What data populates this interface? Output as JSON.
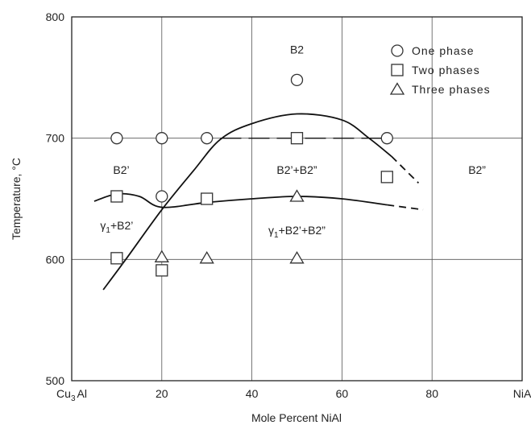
{
  "chart_data": {
    "type": "scatter",
    "xlabel": "Mole Percent NiAl",
    "ylabel": "Temperature, °C",
    "xlim": [
      0,
      100
    ],
    "ylim": [
      500,
      800
    ],
    "x_ticks": [
      {
        "value": 0,
        "label": "Cu3Al",
        "base": "Cu",
        "sub": "3",
        "tail": "Al"
      },
      {
        "value": 20,
        "label": "20"
      },
      {
        "value": 40,
        "label": "40"
      },
      {
        "value": 60,
        "label": "60"
      },
      {
        "value": 80,
        "label": "80"
      },
      {
        "value": 100,
        "label": "NiA"
      }
    ],
    "y_ticks": [
      {
        "value": 500,
        "label": "500"
      },
      {
        "value": 600,
        "label": "600"
      },
      {
        "value": 700,
        "label": "700"
      },
      {
        "value": 800,
        "label": "800"
      }
    ],
    "grid": true,
    "legend_position": "top-right",
    "series": [
      {
        "name": "One phase",
        "marker": "circle",
        "points": [
          [
            10,
            700
          ],
          [
            20,
            700
          ],
          [
            30,
            700
          ],
          [
            50,
            748
          ],
          [
            70,
            700
          ],
          [
            20,
            652
          ]
        ]
      },
      {
        "name": "Two phases",
        "marker": "square",
        "points": [
          [
            10,
            652
          ],
          [
            30,
            650
          ],
          [
            50,
            700
          ],
          [
            70,
            668
          ],
          [
            10,
            601
          ],
          [
            20,
            591
          ]
        ]
      },
      {
        "name": "Three phases",
        "marker": "triangle",
        "points": [
          [
            20,
            602
          ],
          [
            30,
            601
          ],
          [
            50,
            652
          ],
          [
            50,
            601
          ]
        ]
      }
    ],
    "boundaries": [
      {
        "style": "solid",
        "points": [
          [
            7,
            575
          ],
          [
            12,
            600
          ],
          [
            20,
            641
          ],
          [
            27,
            673
          ],
          [
            33,
            699
          ],
          [
            40,
            712
          ],
          [
            50,
            720
          ],
          [
            60,
            715
          ],
          [
            66,
            700
          ],
          [
            71,
            685
          ]
        ]
      },
      {
        "style": "dashed",
        "points": [
          [
            71,
            685
          ],
          [
            74,
            674
          ],
          [
            77,
            663
          ]
        ]
      },
      {
        "style": "solid",
        "points": [
          [
            5,
            648
          ],
          [
            10,
            654
          ],
          [
            15,
            652
          ],
          [
            20,
            643
          ],
          [
            30,
            647
          ],
          [
            40,
            650
          ],
          [
            50,
            652
          ],
          [
            60,
            650
          ],
          [
            70,
            645
          ]
        ]
      },
      {
        "style": "dashed",
        "points": [
          [
            70,
            645
          ],
          [
            74,
            643
          ],
          [
            78,
            641
          ]
        ]
      },
      {
        "style": "dashed-horizontal",
        "points": [
          [
            33,
            700
          ],
          [
            69,
            700
          ]
        ]
      }
    ],
    "regions": [
      {
        "label": "B2",
        "x": 50,
        "y": 773
      },
      {
        "label": "B2’",
        "x": 11,
        "y": 674
      },
      {
        "label": "B2’+B2”",
        "x": 50,
        "y": 674
      },
      {
        "label": "B2”",
        "x": 90,
        "y": 674
      },
      {
        "label": "γ1+B2’",
        "x": 10,
        "y": 628,
        "greek": "γ",
        "sub": "1",
        "tail": "+B2’"
      },
      {
        "label": "γ1+B2’+B2”",
        "x": 50,
        "y": 624,
        "greek": "γ",
        "sub": "1",
        "tail": "+B2’+B2”"
      }
    ]
  }
}
